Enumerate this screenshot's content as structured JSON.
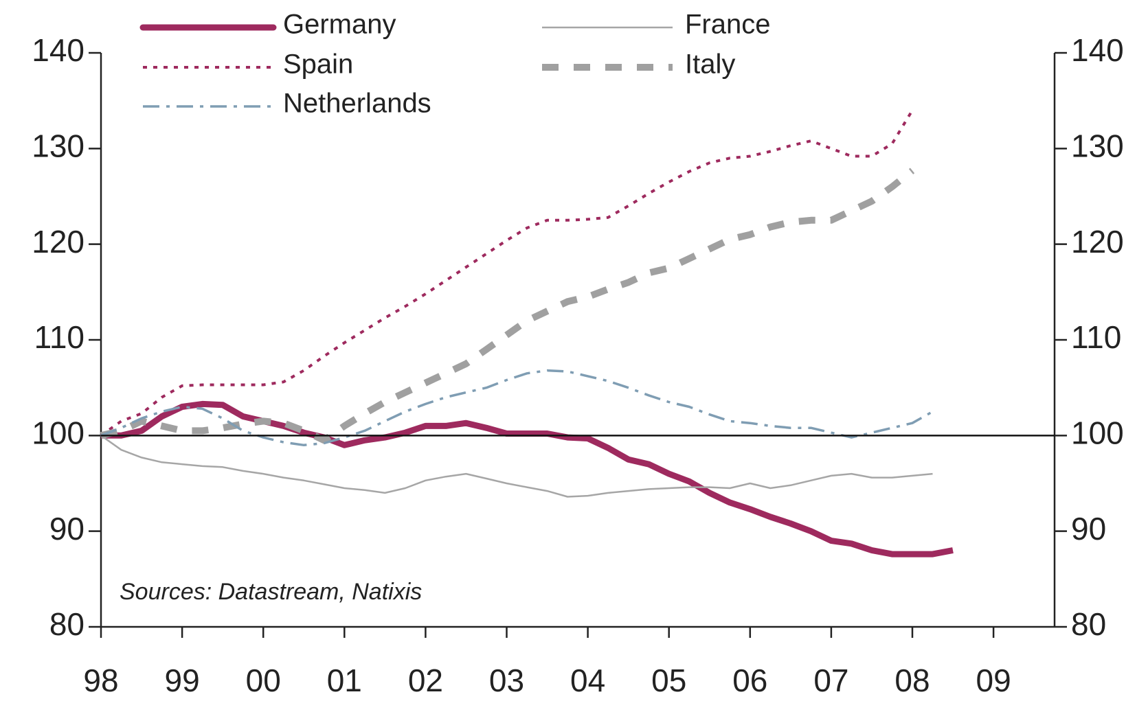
{
  "chart_data": {
    "type": "line",
    "annotation": "Sources: Datastream, Natixis",
    "xlim": [
      1998,
      2009.75
    ],
    "xticks": [
      {
        "value": 1998,
        "label": "98"
      },
      {
        "value": 1999,
        "label": "99"
      },
      {
        "value": 2000,
        "label": "00"
      },
      {
        "value": 2001,
        "label": "01"
      },
      {
        "value": 2002,
        "label": "02"
      },
      {
        "value": 2003,
        "label": "03"
      },
      {
        "value": 2004,
        "label": "04"
      },
      {
        "value": 2005,
        "label": "05"
      },
      {
        "value": 2006,
        "label": "06"
      },
      {
        "value": 2007,
        "label": "07"
      },
      {
        "value": 2008,
        "label": "08"
      },
      {
        "value": 2009,
        "label": "09"
      }
    ],
    "ylim": [
      80,
      140
    ],
    "yticks": [
      80,
      90,
      100,
      110,
      120,
      130,
      140
    ],
    "y2lim": [
      80,
      140
    ],
    "y2ticks": [
      80,
      90,
      100,
      110,
      120,
      130,
      140
    ],
    "hline": 100,
    "grid": false,
    "legend": "top",
    "series": [
      {
        "name": "Germany",
        "color": "#9e2a5e",
        "style": "thick",
        "x": [
          1998,
          1998.25,
          1998.5,
          1998.75,
          1999,
          1999.25,
          1999.5,
          1999.75,
          2000,
          2000.25,
          2000.5,
          2000.75,
          2001,
          2001.25,
          2001.5,
          2001.75,
          2002,
          2002.25,
          2002.5,
          2002.75,
          2003,
          2003.25,
          2003.5,
          2003.75,
          2004,
          2004.25,
          2004.5,
          2004.75,
          2005,
          2005.25,
          2005.5,
          2005.75,
          2006,
          2006.25,
          2006.5,
          2006.75,
          2007,
          2007.25,
          2007.5,
          2007.75,
          2008,
          2008.25,
          2008.5
        ],
        "values": [
          100,
          100,
          100.5,
          102,
          103,
          103.3,
          103.2,
          102,
          101.5,
          101,
          100.3,
          99.8,
          99,
          99.5,
          99.8,
          100.3,
          101,
          101,
          101.3,
          100.8,
          100.2,
          100.2,
          100.2,
          99.8,
          99.7,
          98.7,
          97.5,
          97,
          96,
          95.2,
          94,
          93,
          92.3,
          91.5,
          90.8,
          90,
          89,
          88.7,
          88,
          87.6,
          87.6,
          87.6,
          88
        ]
      },
      {
        "name": "France",
        "color": "#a6a6a6",
        "style": "thin",
        "x": [
          1998,
          1998.25,
          1998.5,
          1998.75,
          1999,
          1999.25,
          1999.5,
          1999.75,
          2000,
          2000.25,
          2000.5,
          2000.75,
          2001,
          2001.25,
          2001.5,
          2001.75,
          2002,
          2002.25,
          2002.5,
          2002.75,
          2003,
          2003.25,
          2003.5,
          2003.75,
          2004,
          2004.25,
          2004.5,
          2004.75,
          2005,
          2005.25,
          2005.5,
          2005.75,
          2006,
          2006.25,
          2006.5,
          2006.75,
          2007,
          2007.25,
          2007.5,
          2007.75,
          2008,
          2008.25
        ],
        "values": [
          100,
          98.5,
          97.7,
          97.2,
          97,
          96.8,
          96.7,
          96.3,
          96,
          95.6,
          95.3,
          94.9,
          94.5,
          94.3,
          94,
          94.5,
          95.3,
          95.7,
          96,
          95.5,
          95,
          94.6,
          94.2,
          93.6,
          93.7,
          94,
          94.2,
          94.4,
          94.5,
          94.6,
          94.6,
          94.5,
          95,
          94.5,
          94.8,
          95.3,
          95.8,
          96,
          95.6,
          95.6,
          95.8,
          96
        ]
      },
      {
        "name": "Spain",
        "color": "#9e2a5e",
        "style": "dotted",
        "x": [
          1998,
          1998.25,
          1998.5,
          1998.75,
          1999,
          1999.25,
          1999.5,
          1999.75,
          2000,
          2000.25,
          2000.5,
          2000.75,
          2001,
          2001.25,
          2001.5,
          2001.75,
          2002,
          2002.25,
          2002.5,
          2002.75,
          2003,
          2003.25,
          2003.5,
          2003.75,
          2004,
          2004.25,
          2004.5,
          2004.75,
          2005,
          2005.25,
          2005.5,
          2005.75,
          2006,
          2006.25,
          2006.5,
          2006.75,
          2007,
          2007.25,
          2007.5,
          2007.75,
          2008
        ],
        "values": [
          100,
          101.5,
          102.3,
          104,
          105.2,
          105.3,
          105.3,
          105.3,
          105.3,
          105.6,
          106.8,
          108.3,
          109.7,
          111,
          112.3,
          113.5,
          114.8,
          116.2,
          117.6,
          119,
          120.4,
          121.7,
          122.5,
          122.5,
          122.6,
          122.8,
          124,
          125.3,
          126.5,
          127.6,
          128.5,
          129,
          129.2,
          129.7,
          130.3,
          130.8,
          130,
          129.2,
          129.2,
          130.5,
          134
        ]
      },
      {
        "name": "Italy",
        "color": "#a0a0a0",
        "style": "dashed",
        "x": [
          1998,
          1998.25,
          1998.5,
          1998.75,
          1999,
          1999.25,
          1999.5,
          1999.75,
          2000,
          2000.25,
          2000.5,
          2000.75,
          2001,
          2001.25,
          2001.5,
          2001.75,
          2002,
          2002.25,
          2002.5,
          2002.75,
          2003,
          2003.25,
          2003.5,
          2003.75,
          2004,
          2004.25,
          2004.5,
          2004.75,
          2005,
          2005.25,
          2005.5,
          2005.75,
          2006,
          2006.25,
          2006.5,
          2006.75,
          2007,
          2007.25,
          2007.5,
          2007.75,
          2008
        ],
        "values": [
          100,
          100.5,
          101.5,
          101,
          100.5,
          100.5,
          100.8,
          101.2,
          101.5,
          101.3,
          100.5,
          99.5,
          101,
          102.3,
          103.5,
          104.5,
          105.5,
          106.5,
          107.5,
          109,
          110.5,
          112,
          113,
          114,
          114.5,
          115.3,
          116,
          117,
          117.5,
          118.5,
          119.5,
          120.5,
          121,
          121.8,
          122.3,
          122.5,
          122.5,
          123.5,
          124.5,
          126,
          127.7
        ]
      },
      {
        "name": "Netherlands",
        "color": "#7f9db3",
        "style": "dashdot",
        "x": [
          1998,
          1998.25,
          1998.5,
          1998.75,
          1999,
          1999.25,
          1999.5,
          1999.75,
          2000,
          2000.25,
          2000.5,
          2000.75,
          2001,
          2001.25,
          2001.5,
          2001.75,
          2002,
          2002.25,
          2002.5,
          2002.75,
          2003,
          2003.25,
          2003.5,
          2003.75,
          2004,
          2004.25,
          2004.5,
          2004.75,
          2005,
          2005.25,
          2005.5,
          2005.75,
          2006,
          2006.25,
          2006.5,
          2006.75,
          2007,
          2007.25,
          2007.5,
          2007.75,
          2008,
          2008.25
        ],
        "values": [
          100,
          100.8,
          101.8,
          102.5,
          103,
          102.8,
          101.8,
          100.5,
          99.8,
          99.3,
          99,
          99.2,
          99.8,
          100.5,
          101.5,
          102.5,
          103.3,
          104,
          104.5,
          105,
          105.8,
          106.5,
          106.8,
          106.7,
          106.2,
          105.7,
          105,
          104.2,
          103.5,
          103,
          102.2,
          101.5,
          101.3,
          101,
          100.8,
          100.8,
          100.3,
          99.8,
          100.3,
          100.8,
          101.3,
          102.5
        ]
      }
    ]
  }
}
